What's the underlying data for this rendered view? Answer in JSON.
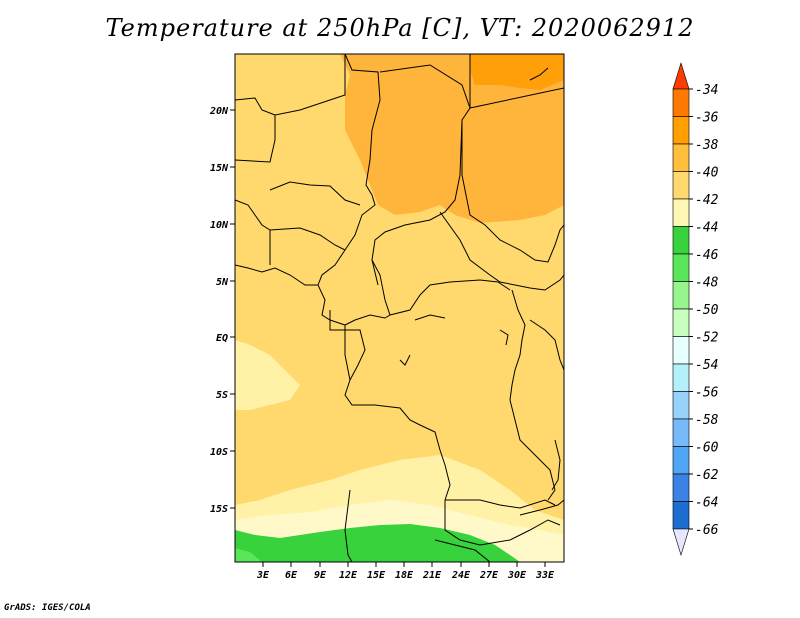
{
  "title": "Temperature at 250hPa [C], VT: 2020062912",
  "credit": "GrADS: IGES/COLA",
  "map": {
    "lat_ticks": [
      "20N",
      "15N",
      "10N",
      "5N",
      "EQ",
      "5S",
      "10S",
      "15S"
    ],
    "lon_ticks": [
      "3E",
      "6E",
      "9E",
      "12E",
      "15E",
      "18E",
      "21E",
      "24E",
      "27E",
      "30E",
      "33E"
    ]
  },
  "colorbar": {
    "labels": [
      "-34",
      "-36",
      "-38",
      "-40",
      "-42",
      "-44",
      "-46",
      "-48",
      "-50",
      "-52",
      "-54",
      "-56",
      "-58",
      "-60",
      "-62",
      "-64",
      "-66"
    ],
    "colors": [
      "#ff3c00",
      "#ff7800",
      "#ffa000",
      "#ffbe3c",
      "#ffd96e",
      "#fff8b4",
      "#37d23c",
      "#5ae65a",
      "#96f58c",
      "#c8ffbe",
      "#e6ffff",
      "#b4f0fa",
      "#96d2fa",
      "#78b9fa",
      "#50a5f5",
      "#3c82e6",
      "#1e6ed2",
      "#0a46b4",
      "#141473",
      "#e6e6ff"
    ]
  },
  "colors": {
    "c34_36": "#ff9f0a",
    "c36_38": "#ffb43c",
    "c38_40": "#ffd96e",
    "c40_42": "#fff2a6",
    "c42_44": "#fff8c8",
    "c44_46": "#37d23c",
    "c46_48": "#5ae65a"
  }
}
